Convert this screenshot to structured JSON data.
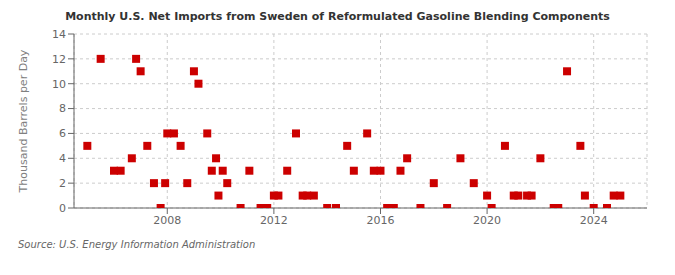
{
  "chart_data": {
    "type": "scatter",
    "title": "Monthly U.S. Net Imports from Sweden of Reformulated Gasoline Blending Components",
    "ylabel": "Thousand Barrels per Day",
    "annotation": "Source: U.S. Energy Information Administration",
    "color": "#cc0000",
    "marker": "square",
    "grid": true,
    "xlim": [
      2004.5,
      2026.0
    ],
    "ylim": [
      0,
      14
    ],
    "xticks": [
      2008,
      2012,
      2016,
      2020,
      2024
    ],
    "yticks": [
      0,
      2,
      4,
      6,
      8,
      10,
      12,
      14
    ],
    "x": [
      2005.0,
      2005.5,
      2006.0,
      2006.25,
      2006.67,
      2006.83,
      2007.0,
      2007.25,
      2007.5,
      2007.75,
      2007.92,
      2008.0,
      2008.25,
      2008.5,
      2008.75,
      2009.0,
      2009.17,
      2009.5,
      2009.67,
      2009.83,
      2009.92,
      2010.08,
      2010.25,
      2010.75,
      2011.08,
      2011.5,
      2011.75,
      2012.0,
      2012.17,
      2012.5,
      2012.83,
      2013.08,
      2013.25,
      2013.5,
      2014.0,
      2014.33,
      2014.75,
      2015.0,
      2015.5,
      2015.75,
      2016.0,
      2016.25,
      2016.5,
      2016.75,
      2017.0,
      2017.5,
      2018.0,
      2018.5,
      2019.0,
      2019.5,
      2020.0,
      2020.17,
      2020.67,
      2021.0,
      2021.17,
      2021.5,
      2021.67,
      2022.0,
      2022.5,
      2022.67,
      2023.0,
      2023.5,
      2023.67,
      2024.0,
      2024.5,
      2024.75,
      2025.0
    ],
    "values": [
      5,
      12,
      3,
      3,
      4,
      12,
      11,
      5,
      2,
      0,
      2,
      6,
      6,
      5,
      2,
      11,
      10,
      6,
      3,
      4,
      1,
      3,
      2,
      0,
      3,
      0,
      0,
      1,
      1,
      3,
      6,
      1,
      1,
      1,
      0,
      0,
      5,
      3,
      6,
      3,
      3,
      0,
      0,
      3,
      4,
      0,
      2,
      0,
      4,
      2,
      1,
      0,
      5,
      1,
      1,
      1,
      1,
      4,
      0,
      0,
      11,
      5,
      1,
      0,
      0,
      1,
      1
    ]
  }
}
